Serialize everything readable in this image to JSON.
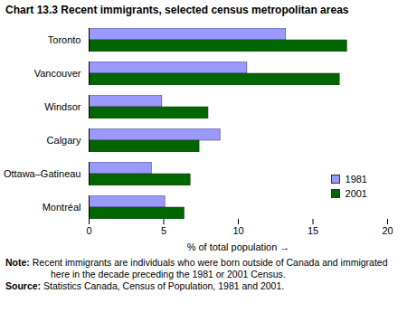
{
  "chart_data": {
    "type": "bar",
    "orientation": "horizontal",
    "title": "Chart 13.3  Recent immigrants, selected census metropolitan areas",
    "x_label": "% of total population",
    "categories": [
      "Toronto",
      "Vancouver",
      "Windsor",
      "Calgary",
      "Ottawa–Gatineau",
      "Montréal"
    ],
    "series": [
      {
        "name": "1981",
        "color": "#9999ff",
        "values": [
          13.2,
          10.6,
          4.9,
          8.8,
          4.2,
          5.1
        ]
      },
      {
        "name": "2001",
        "color": "#006600",
        "values": [
          17.3,
          16.8,
          8.0,
          7.4,
          6.8,
          6.4
        ]
      }
    ],
    "xlim": [
      0,
      20
    ],
    "xticks": [
      0,
      5,
      10,
      15,
      20
    ],
    "grid": false,
    "legend": "lower right",
    "note": "Note: Recent immigrants are individuals who were born outside of Canada and immigrated here in the decade preceding the 1981 or 2001 Census.",
    "source": "Source: Statistics Canada, Census of Population, 1981 and 2001."
  }
}
